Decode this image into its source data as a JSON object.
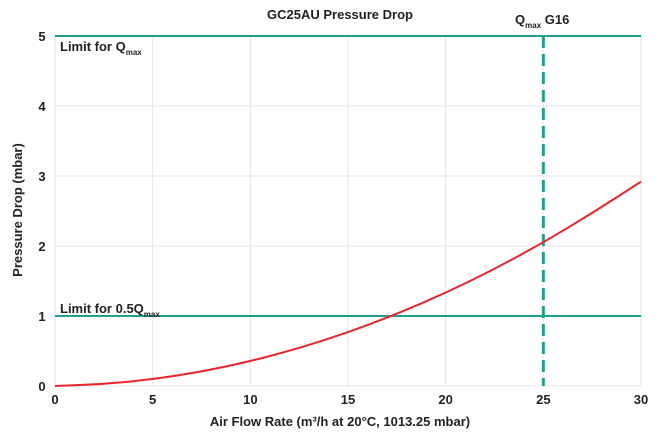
{
  "chart_data": {
    "type": "line",
    "title": "GC25AU Pressure Drop",
    "xlabel": "Air Flow Rate (m³/h at 20°C, 1013.25 mbar)",
    "ylabel": "Pressure Drop (mbar)",
    "xlim": [
      0,
      30
    ],
    "ylim": [
      0,
      5
    ],
    "x_ticks": [
      0,
      5,
      10,
      15,
      20,
      25,
      30
    ],
    "y_ticks": [
      0,
      1,
      2,
      3,
      4,
      5
    ],
    "grid": true,
    "series": [
      {
        "x": [
          0,
          2.5,
          5,
          7.5,
          10,
          12.5,
          15,
          17.5,
          20,
          22.5,
          25,
          27.5,
          30
        ],
        "y": [
          0,
          0.027,
          0.096,
          0.205,
          0.353,
          0.54,
          0.765,
          1.03,
          1.33,
          1.67,
          2.05,
          2.47,
          2.92
        ],
        "color": "#e8262b"
      }
    ],
    "annotations": {
      "limit_qmax": {
        "y": 5,
        "text": "Limit for Q",
        "sub": "max",
        "color": "#22a08f"
      },
      "limit_half_qmax": {
        "y": 1,
        "text": "Limit for 0.5Q",
        "sub": "max",
        "color": "#22a08f"
      },
      "qmax_g16": {
        "x": 25,
        "text_prefix": "Q",
        "sub": "max",
        "text_suffix": " G16",
        "color": "#22a08f"
      }
    }
  }
}
